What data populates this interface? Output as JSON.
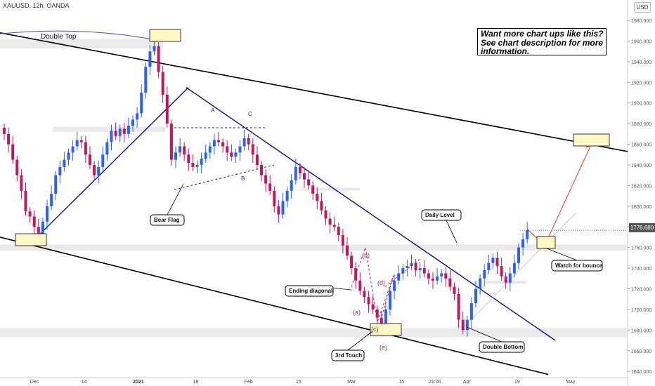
{
  "header": {
    "symbol": "XAUUSD, 12h, OANDA",
    "currency": "USD"
  },
  "promo": {
    "line1": "Want more chart ups like this?",
    "line2": "See chart description for more",
    "line3": "information."
  },
  "colors": {
    "up": "#2962ff",
    "down": "#c2185b",
    "trend_blue": "#1a1a9e",
    "channel": "#000000",
    "zone": "#e6e6e6",
    "box": "#fff8c4",
    "projection": "#e53935"
  },
  "chart_data": {
    "type": "candlestick",
    "symbol": "XAUUSD",
    "timeframe": "12h",
    "ylim": [
      1634,
      1995
    ],
    "last_price": 1776.68,
    "last_price_label": "1776.680",
    "y_ticks": [
      1640,
      1660,
      1680,
      1700,
      1720,
      1740,
      1760,
      1780,
      1800,
      1820,
      1840,
      1860,
      1880,
      1900,
      1920,
      1940,
      1960,
      1980
    ],
    "x_ticks": [
      {
        "label": "Dec",
        "i": 7
      },
      {
        "label": "14",
        "i": 19
      },
      {
        "label": "2021",
        "i": 31
      },
      {
        "label": "18",
        "i": 45
      },
      {
        "label": "Feb",
        "i": 57
      },
      {
        "label": "15",
        "i": 69
      },
      {
        "label": "Mar",
        "i": 81
      },
      {
        "label": "15",
        "i": 93
      },
      {
        "label": "21:00",
        "i": 100
      },
      {
        "label": "Apr",
        "i": 108
      },
      {
        "label": "19",
        "i": 120
      },
      {
        "label": "May",
        "i": 132
      }
    ],
    "closes": [
      1870,
      1860,
      1845,
      1830,
      1815,
      1795,
      1790,
      1780,
      1772,
      1785,
      1800,
      1812,
      1830,
      1838,
      1845,
      1852,
      1858,
      1864,
      1862,
      1850,
      1840,
      1830,
      1838,
      1850,
      1862,
      1873,
      1868,
      1875,
      1870,
      1878,
      1884,
      1890,
      1910,
      1935,
      1950,
      1955,
      1930,
      1908,
      1880,
      1845,
      1852,
      1858,
      1850,
      1842,
      1838,
      1840,
      1846,
      1852,
      1858,
      1864,
      1862,
      1858,
      1852,
      1848,
      1852,
      1858,
      1866,
      1860,
      1850,
      1840,
      1830,
      1822,
      1815,
      1800,
      1792,
      1805,
      1815,
      1825,
      1838,
      1832,
      1826,
      1820,
      1812,
      1805,
      1796,
      1788,
      1782,
      1780,
      1772,
      1762,
      1752,
      1740,
      1728,
      1718,
      1712,
      1705,
      1700,
      1692,
      1686,
      1700,
      1718,
      1728,
      1735,
      1740,
      1742,
      1745,
      1738,
      1740,
      1735,
      1730,
      1728,
      1732,
      1735,
      1730,
      1722,
      1715,
      1690,
      1680,
      1690,
      1706,
      1720,
      1730,
      1738,
      1745,
      1750,
      1742,
      1732,
      1726,
      1735,
      1745,
      1760,
      1768,
      1776.68
    ],
    "annotations": [
      {
        "text": "Double Top",
        "type": "zone-label"
      },
      {
        "text": "Bear Flag",
        "type": "callout"
      },
      {
        "text": "A",
        "type": "point"
      },
      {
        "text": "B",
        "type": "point"
      },
      {
        "text": "C",
        "type": "point"
      },
      {
        "text": "(a)",
        "type": "wave"
      },
      {
        "text": "(b)",
        "type": "wave"
      },
      {
        "text": "(c)",
        "type": "wave"
      },
      {
        "text": "(d)",
        "type": "wave"
      },
      {
        "text": "(e)",
        "type": "wave"
      },
      {
        "text": "Ending diagonal",
        "type": "callout"
      },
      {
        "text": "3rd Touch",
        "type": "callout"
      },
      {
        "text": "Daily Level",
        "type": "callout"
      },
      {
        "text": "Double Bottom",
        "type": "callout"
      },
      {
        "text": "Watch for bounce",
        "type": "callout"
      }
    ]
  }
}
